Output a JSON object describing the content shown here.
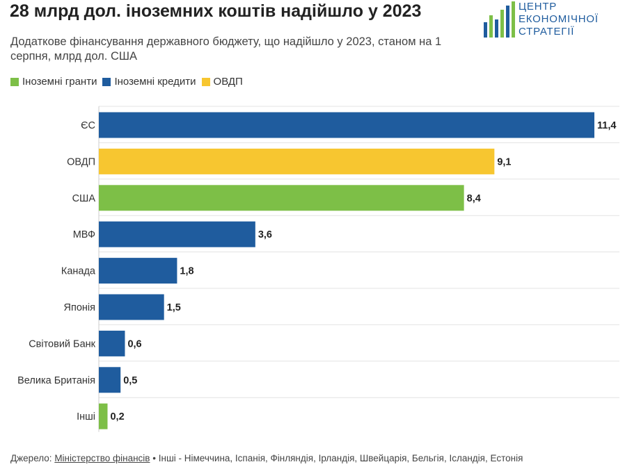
{
  "title": "28 млрд дол. іноземних коштів надійшло у 2023",
  "subtitle": "Додаткове фінансування державного бюджету, що надійшло у 2023, станом на 1 серпня, млрд дол. США",
  "legend": [
    {
      "label": "Іноземні гранти",
      "color": "#7dbf47"
    },
    {
      "label": "Іноземні кредити",
      "color": "#1f5c9e"
    },
    {
      "label": "ОВДП",
      "color": "#f7c630"
    }
  ],
  "logo": {
    "line1": "ЦЕНТР",
    "line2": "ЕКОНОМІЧНОЇ",
    "line3": "СТРАТЕГІЇ",
    "icon": "bar-chart-logo-icon"
  },
  "footer": {
    "source_label": "Джерело:",
    "source_link": "Міністерство фінансів",
    "separator": "•",
    "note": "Інші - Німеччина, Іспанія, Фінляндія, Ірландія, Швейцарія, Бельгія, Ісландія, Естонія"
  },
  "chart_data": {
    "type": "bar",
    "orientation": "horizontal",
    "title": "28 млрд дол. іноземних коштів надійшло у 2023",
    "xlabel": "",
    "ylabel": "",
    "xlim": [
      0,
      11.4
    ],
    "grid": false,
    "legend_position": "top-left",
    "categories": [
      "ЄС",
      "ОВДП",
      "США",
      "МВФ",
      "Канада",
      "Японія",
      "Світовий Банк",
      "Велика Британія",
      "Інші"
    ],
    "values": [
      11.4,
      9.1,
      8.4,
      3.6,
      1.8,
      1.5,
      0.6,
      0.5,
      0.2
    ],
    "value_labels": [
      "11,4",
      "9,1",
      "8,4",
      "3,6",
      "1,8",
      "1,5",
      "0,6",
      "0,5",
      "0,2"
    ],
    "bar_types": [
      "Іноземні кредити",
      "ОВДП",
      "Іноземні гранти",
      "Іноземні кредити",
      "Іноземні кредити",
      "Іноземні кредити",
      "Іноземні кредити",
      "Іноземні кредити",
      "Іноземні гранти"
    ],
    "type_colors": {
      "Іноземні гранти": "#7dbf47",
      "Іноземні кредити": "#1f5c9e",
      "ОВДП": "#f7c630"
    }
  }
}
